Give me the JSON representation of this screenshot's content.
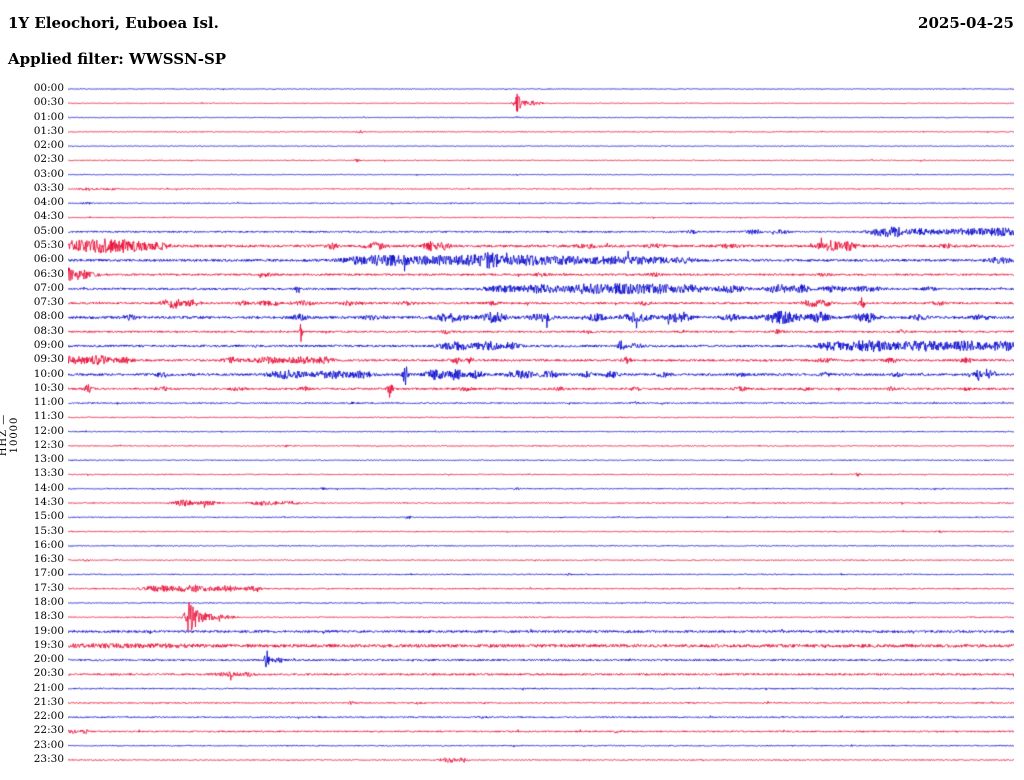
{
  "chart_data": {
    "type": "helicorder",
    "title": "1Y Eleochori, Euboea Isl.",
    "date": "2025-04-25",
    "applied_filter_label": "Applied filter: WWSSN-SP",
    "applied_filter": "WWSSN-SP",
    "y_axis_label": "HHZ — 10000",
    "channel": "HHZ",
    "scale": "10000",
    "minutes_per_line": 30,
    "lines": 48,
    "grid": "off",
    "legend": "none",
    "colors": {
      "even": "#0000cc",
      "odd": "#e8002d"
    },
    "burst_format": "[position_fraction_of_line, gaussian_width_fraction, amplitude_px]",
    "rows": [
      {
        "t": "00:00",
        "base": 0.4,
        "bursts": []
      },
      {
        "t": "00:30",
        "base": 0.4,
        "bursts": [
          [
            0.4746,
            0.003,
            9
          ],
          [
            0.487,
            0.012,
            2.5
          ]
        ]
      },
      {
        "t": "01:00",
        "base": 0.4,
        "bursts": [
          [
            0.4746,
            0.002,
            1.5
          ]
        ]
      },
      {
        "t": "01:30",
        "base": 0.45,
        "bursts": [
          [
            0.309,
            0.004,
            1.2
          ]
        ]
      },
      {
        "t": "02:00",
        "base": 0.4,
        "bursts": []
      },
      {
        "t": "02:30",
        "base": 0.45,
        "bursts": [
          [
            0.306,
            0.003,
            1.3
          ]
        ]
      },
      {
        "t": "03:00",
        "base": 0.4,
        "bursts": []
      },
      {
        "t": "03:30",
        "base": 0.5,
        "bursts": [
          [
            0.02,
            0.008,
            1.0
          ],
          [
            0.045,
            0.008,
            0.8
          ]
        ]
      },
      {
        "t": "04:00",
        "base": 0.5,
        "bursts": [
          [
            0.02,
            0.006,
            0.8
          ]
        ]
      },
      {
        "t": "04:30",
        "base": 0.5,
        "bursts": []
      },
      {
        "t": "05:00",
        "base": 0.8,
        "bursts": [
          [
            0.66,
            0.006,
            1.5
          ],
          [
            0.725,
            0.008,
            2
          ],
          [
            0.755,
            0.007,
            1.8
          ],
          [
            0.858,
            0.012,
            3.5
          ],
          [
            0.873,
            0.008,
            4.5
          ],
          [
            0.9,
            0.02,
            2.5
          ],
          [
            0.95,
            0.03,
            2.8
          ],
          [
            0.99,
            0.02,
            3
          ]
        ]
      },
      {
        "t": "05:30",
        "base": 1.3,
        "bursts": [
          [
            0.008,
            0.01,
            4
          ],
          [
            0.035,
            0.022,
            6
          ],
          [
            0.068,
            0.018,
            5
          ],
          [
            0.095,
            0.01,
            3
          ],
          [
            0.28,
            0.005,
            2.5
          ],
          [
            0.325,
            0.01,
            3
          ],
          [
            0.383,
            0.007,
            4.2
          ],
          [
            0.397,
            0.006,
            3.2
          ],
          [
            0.55,
            0.01,
            1.5
          ],
          [
            0.62,
            0.008,
            1.5
          ],
          [
            0.7,
            0.01,
            1.5
          ],
          [
            0.805,
            0.012,
            4.5
          ],
          [
            0.825,
            0.008,
            3.5
          ],
          [
            0.93,
            0.006,
            1.5
          ]
        ]
      },
      {
        "t": "06:00",
        "base": 1.2,
        "bursts": [
          [
            0.31,
            0.02,
            3
          ],
          [
            0.345,
            0.025,
            4.5
          ],
          [
            0.39,
            0.02,
            4
          ],
          [
            0.425,
            0.015,
            5
          ],
          [
            0.447,
            0.012,
            6
          ],
          [
            0.48,
            0.025,
            4
          ],
          [
            0.525,
            0.03,
            3.2
          ],
          [
            0.575,
            0.025,
            3
          ],
          [
            0.615,
            0.02,
            3
          ],
          [
            0.65,
            0.012,
            2.5
          ],
          [
            0.985,
            0.012,
            2.5
          ]
        ]
      },
      {
        "t": "06:30",
        "base": 1.0,
        "bursts": [
          [
            0.0,
            0.01,
            6
          ],
          [
            0.018,
            0.012,
            3.5
          ],
          [
            0.21,
            0.008,
            1.3
          ],
          [
            0.5,
            0.008,
            1.2
          ],
          [
            0.62,
            0.006,
            1.2
          ],
          [
            0.8,
            0.006,
            1.2
          ]
        ]
      },
      {
        "t": "07:00",
        "base": 1.0,
        "bursts": [
          [
            0.243,
            0.0018,
            5
          ],
          [
            0.46,
            0.02,
            3
          ],
          [
            0.5,
            0.02,
            3.8
          ],
          [
            0.545,
            0.02,
            4.2
          ],
          [
            0.585,
            0.025,
            4.5
          ],
          [
            0.625,
            0.02,
            4
          ],
          [
            0.66,
            0.015,
            3.5
          ],
          [
            0.7,
            0.015,
            3.2
          ],
          [
            0.75,
            0.012,
            4
          ],
          [
            0.775,
            0.01,
            3.5
          ],
          [
            0.81,
            0.012,
            3
          ],
          [
            0.845,
            0.015,
            2.2
          ],
          [
            0.91,
            0.008,
            1.5
          ]
        ]
      },
      {
        "t": "07:30",
        "base": 1.0,
        "bursts": [
          [
            0.112,
            0.012,
            4.5
          ],
          [
            0.13,
            0.008,
            3
          ],
          [
            0.185,
            0.005,
            2
          ],
          [
            0.215,
            0.015,
            2
          ],
          [
            0.25,
            0.01,
            2
          ],
          [
            0.3,
            0.012,
            1.8
          ],
          [
            0.36,
            0.008,
            1.5
          ],
          [
            0.45,
            0.006,
            2
          ],
          [
            0.61,
            0.006,
            1.5
          ],
          [
            0.785,
            0.009,
            3
          ],
          [
            0.8,
            0.007,
            2.5
          ],
          [
            0.839,
            0.003,
            5.5
          ],
          [
            0.92,
            0.008,
            1.5
          ]
        ]
      },
      {
        "t": "08:00",
        "base": 1.3,
        "bursts": [
          [
            0.065,
            0.007,
            2
          ],
          [
            0.245,
            0.007,
            2.5
          ],
          [
            0.32,
            0.008,
            2
          ],
          [
            0.405,
            0.015,
            4
          ],
          [
            0.45,
            0.013,
            4.5
          ],
          [
            0.5,
            0.013,
            3.5
          ],
          [
            0.558,
            0.009,
            3
          ],
          [
            0.6,
            0.015,
            4
          ],
          [
            0.645,
            0.013,
            4
          ],
          [
            0.7,
            0.009,
            3
          ],
          [
            0.755,
            0.02,
            5.5
          ],
          [
            0.795,
            0.01,
            4.5
          ],
          [
            0.843,
            0.011,
            4.5
          ],
          [
            0.9,
            0.008,
            2
          ],
          [
            0.965,
            0.008,
            2
          ]
        ]
      },
      {
        "t": "08:30",
        "base": 0.9,
        "bursts": [
          [
            0.2463,
            0.0012,
            13
          ],
          [
            0.4,
            0.005,
            1.5
          ],
          [
            0.55,
            0.005,
            1.5
          ],
          [
            0.65,
            0.004,
            1.4
          ],
          [
            0.75,
            0.006,
            1.5
          ],
          [
            0.88,
            0.005,
            1.4
          ]
        ]
      },
      {
        "t": "09:00",
        "base": 1.1,
        "bursts": [
          [
            0.41,
            0.016,
            3.5
          ],
          [
            0.443,
            0.012,
            4.2
          ],
          [
            0.468,
            0.009,
            3
          ],
          [
            0.585,
            0.0035,
            4.5
          ],
          [
            0.6,
            0.008,
            2
          ],
          [
            0.806,
            0.016,
            3.5
          ],
          [
            0.846,
            0.025,
            5
          ],
          [
            0.9,
            0.025,
            4.5
          ],
          [
            0.95,
            0.025,
            4.5
          ],
          [
            0.99,
            0.015,
            4
          ]
        ]
      },
      {
        "t": "09:30",
        "base": 1.1,
        "bursts": [
          [
            0.002,
            0.012,
            4
          ],
          [
            0.03,
            0.014,
            4.5
          ],
          [
            0.058,
            0.009,
            3
          ],
          [
            0.173,
            0.009,
            2.5
          ],
          [
            0.21,
            0.016,
            3
          ],
          [
            0.247,
            0.016,
            3
          ],
          [
            0.272,
            0.009,
            2.5
          ],
          [
            0.41,
            0.005,
            3
          ],
          [
            0.425,
            0.0035,
            2.5
          ],
          [
            0.59,
            0.004,
            3.5
          ],
          [
            0.8,
            0.009,
            2
          ],
          [
            0.87,
            0.007,
            2
          ],
          [
            0.95,
            0.008,
            2
          ]
        ]
      },
      {
        "t": "10:00",
        "base": 1.2,
        "bursts": [
          [
            0.1,
            0.008,
            2
          ],
          [
            0.232,
            0.02,
            3.5
          ],
          [
            0.278,
            0.016,
            3.5
          ],
          [
            0.31,
            0.012,
            3
          ],
          [
            0.3565,
            0.0022,
            12
          ],
          [
            0.388,
            0.01,
            4.5
          ],
          [
            0.41,
            0.008,
            5
          ],
          [
            0.432,
            0.007,
            3.5
          ],
          [
            0.478,
            0.013,
            4
          ],
          [
            0.508,
            0.009,
            3.5
          ],
          [
            0.548,
            0.007,
            2.5
          ],
          [
            0.575,
            0.009,
            2.5
          ],
          [
            0.63,
            0.007,
            2
          ],
          [
            0.71,
            0.005,
            1.8
          ],
          [
            0.8,
            0.005,
            1.8
          ],
          [
            0.875,
            0.005,
            2
          ],
          [
            0.962,
            0.0035,
            5
          ],
          [
            0.975,
            0.007,
            3
          ]
        ]
      },
      {
        "t": "10:30",
        "base": 1.0,
        "bursts": [
          [
            0.021,
            0.004,
            3.5
          ],
          [
            0.1,
            0.007,
            1.5
          ],
          [
            0.18,
            0.007,
            1.5
          ],
          [
            0.25,
            0.005,
            1.5
          ],
          [
            0.3405,
            0.0022,
            11
          ],
          [
            0.42,
            0.007,
            1.5
          ],
          [
            0.52,
            0.005,
            1.5
          ],
          [
            0.6,
            0.005,
            1.5
          ],
          [
            0.71,
            0.007,
            1.8
          ],
          [
            0.78,
            0.004,
            1.5
          ],
          [
            0.87,
            0.004,
            1.5
          ],
          [
            0.95,
            0.004,
            1.5
          ]
        ]
      },
      {
        "t": "11:00",
        "base": 0.65,
        "bursts": [
          [
            0.3,
            0.004,
            1.0
          ],
          [
            0.6,
            0.004,
            0.9
          ]
        ]
      },
      {
        "t": "11:30",
        "base": 0.5,
        "bursts": []
      },
      {
        "t": "12:00",
        "base": 0.5,
        "bursts": []
      },
      {
        "t": "12:30",
        "base": 0.5,
        "bursts": [
          [
            0.23,
            0.0025,
            1.0
          ]
        ]
      },
      {
        "t": "13:00",
        "base": 0.5,
        "bursts": []
      },
      {
        "t": "13:30",
        "base": 0.5,
        "bursts": [
          [
            0.835,
            0.0035,
            1.6
          ]
        ]
      },
      {
        "t": "14:00",
        "base": 0.55,
        "bursts": [
          [
            0.27,
            0.003,
            1.2
          ],
          [
            0.475,
            0.003,
            1.2
          ]
        ]
      },
      {
        "t": "14:30",
        "base": 0.55,
        "bursts": [
          [
            0.122,
            0.011,
            2.8
          ],
          [
            0.148,
            0.009,
            2.2
          ],
          [
            0.208,
            0.013,
            2.2
          ],
          [
            0.235,
            0.009,
            2.0
          ]
        ]
      },
      {
        "t": "15:00",
        "base": 0.5,
        "bursts": [
          [
            0.36,
            0.0025,
            1.4
          ]
        ]
      },
      {
        "t": "15:30",
        "base": 0.5,
        "bursts": [
          [
            0.92,
            0.0035,
            1.4
          ]
        ]
      },
      {
        "t": "16:00",
        "base": 0.5,
        "bursts": []
      },
      {
        "t": "16:30",
        "base": 0.5,
        "bursts": [
          [
            0.02,
            0.0035,
            1.0
          ]
        ]
      },
      {
        "t": "17:00",
        "base": 0.55,
        "bursts": [
          [
            0.53,
            0.0025,
            1.0
          ]
        ]
      },
      {
        "t": "17:30",
        "base": 0.65,
        "bursts": [
          [
            0.096,
            0.016,
            2.8
          ],
          [
            0.133,
            0.018,
            3.2
          ],
          [
            0.168,
            0.013,
            2.8
          ],
          [
            0.196,
            0.009,
            2.0
          ]
        ]
      },
      {
        "t": "18:00",
        "base": 0.5,
        "bursts": []
      },
      {
        "t": "18:30",
        "base": 0.55,
        "bursts": [
          [
            0.127,
            0.0035,
            15
          ],
          [
            0.133,
            0.006,
            8
          ],
          [
            0.143,
            0.009,
            4
          ],
          [
            0.162,
            0.014,
            2
          ]
        ]
      },
      {
        "t": "19:00",
        "base": 1.2,
        "bursts": []
      },
      {
        "t": "19:30",
        "base": 1.6,
        "bursts": [
          [
            0.04,
            0.05,
            0.9
          ],
          [
            0.11,
            0.03,
            0.7
          ]
        ]
      },
      {
        "t": "20:00",
        "base": 0.9,
        "bursts": [
          [
            0.2102,
            0.0022,
            14
          ],
          [
            0.222,
            0.007,
            2.2
          ]
        ]
      },
      {
        "t": "20:30",
        "base": 1.0,
        "bursts": [
          [
            0.168,
            0.011,
            1.8
          ],
          [
            0.19,
            0.007,
            1.5
          ]
        ]
      },
      {
        "t": "21:00",
        "base": 0.65,
        "bursts": []
      },
      {
        "t": "21:30",
        "base": 0.65,
        "bursts": [
          [
            0.3,
            0.0035,
            1.2
          ],
          [
            0.37,
            0.0025,
            1.0
          ]
        ]
      },
      {
        "t": "22:00",
        "base": 0.65,
        "bursts": [
          [
            0.44,
            0.008,
            1.0
          ]
        ]
      },
      {
        "t": "22:30",
        "base": 0.75,
        "bursts": [
          [
            0.004,
            0.005,
            2.0
          ],
          [
            0.018,
            0.004,
            1.5
          ],
          [
            0.58,
            0.0025,
            1.2
          ]
        ]
      },
      {
        "t": "23:00",
        "base": 0.55,
        "bursts": []
      },
      {
        "t": "23:30",
        "base": 0.55,
        "bursts": [
          [
            0.402,
            0.009,
            2.2
          ],
          [
            0.418,
            0.005,
            1.8
          ]
        ]
      }
    ]
  }
}
